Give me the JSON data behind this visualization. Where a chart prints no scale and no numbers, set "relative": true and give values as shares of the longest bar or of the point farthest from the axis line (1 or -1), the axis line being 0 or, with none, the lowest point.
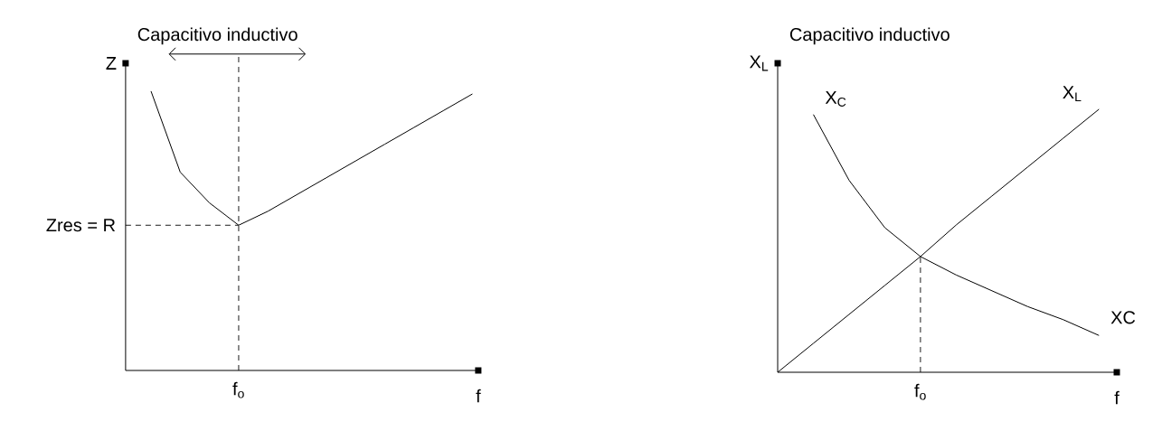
{
  "chart_data": [
    {
      "type": "line",
      "relative": true,
      "ylabel": "Z",
      "xlabel": "f",
      "categories": [
        null,
        null,
        null,
        null,
        null,
        null,
        null,
        null,
        null,
        null,
        null,
        null
      ],
      "series": [
        {
          "color": "#000000",
          "values": [
            1,
            0.71,
            0.6,
            0.52,
            0.57,
            0.63,
            0.69,
            0.75,
            0.81,
            0.87,
            0.93,
            0.99
          ]
        }
      ],
      "ref_lines": [
        {
          "axis": "y",
          "value": 0.52,
          "label": "Zres = R",
          "line_style": "dashed"
        }
      ],
      "annotations": [
        "Capacitivo inductivo",
        "f$_{o}$"
      ]
    },
    {
      "type": "line",
      "relative": true,
      "ylabel": "X$_{L}$",
      "xlabel": "f",
      "categories": [
        null,
        null,
        null,
        null,
        null,
        null,
        null,
        null,
        null,
        null
      ],
      "series": [
        {
          "name": "X$_{C}$",
          "color": "#000000",
          "values": [
            null,
            0.98,
            0.73,
            0.55,
            0.44,
            0.37,
            0.31,
            0.25,
            0.2,
            0.14
          ]
        },
        {
          "name": "X$_{L}$",
          "color": "#000000",
          "values": [
            0,
            0.11,
            0.22,
            0.33,
            0.44,
            0.56,
            0.67,
            0.78,
            0.89,
            1.0
          ]
        }
      ],
      "annotations": [
        "Capacitivo inductivo",
        "XC",
        "f$_{o}$"
      ]
    }
  ]
}
